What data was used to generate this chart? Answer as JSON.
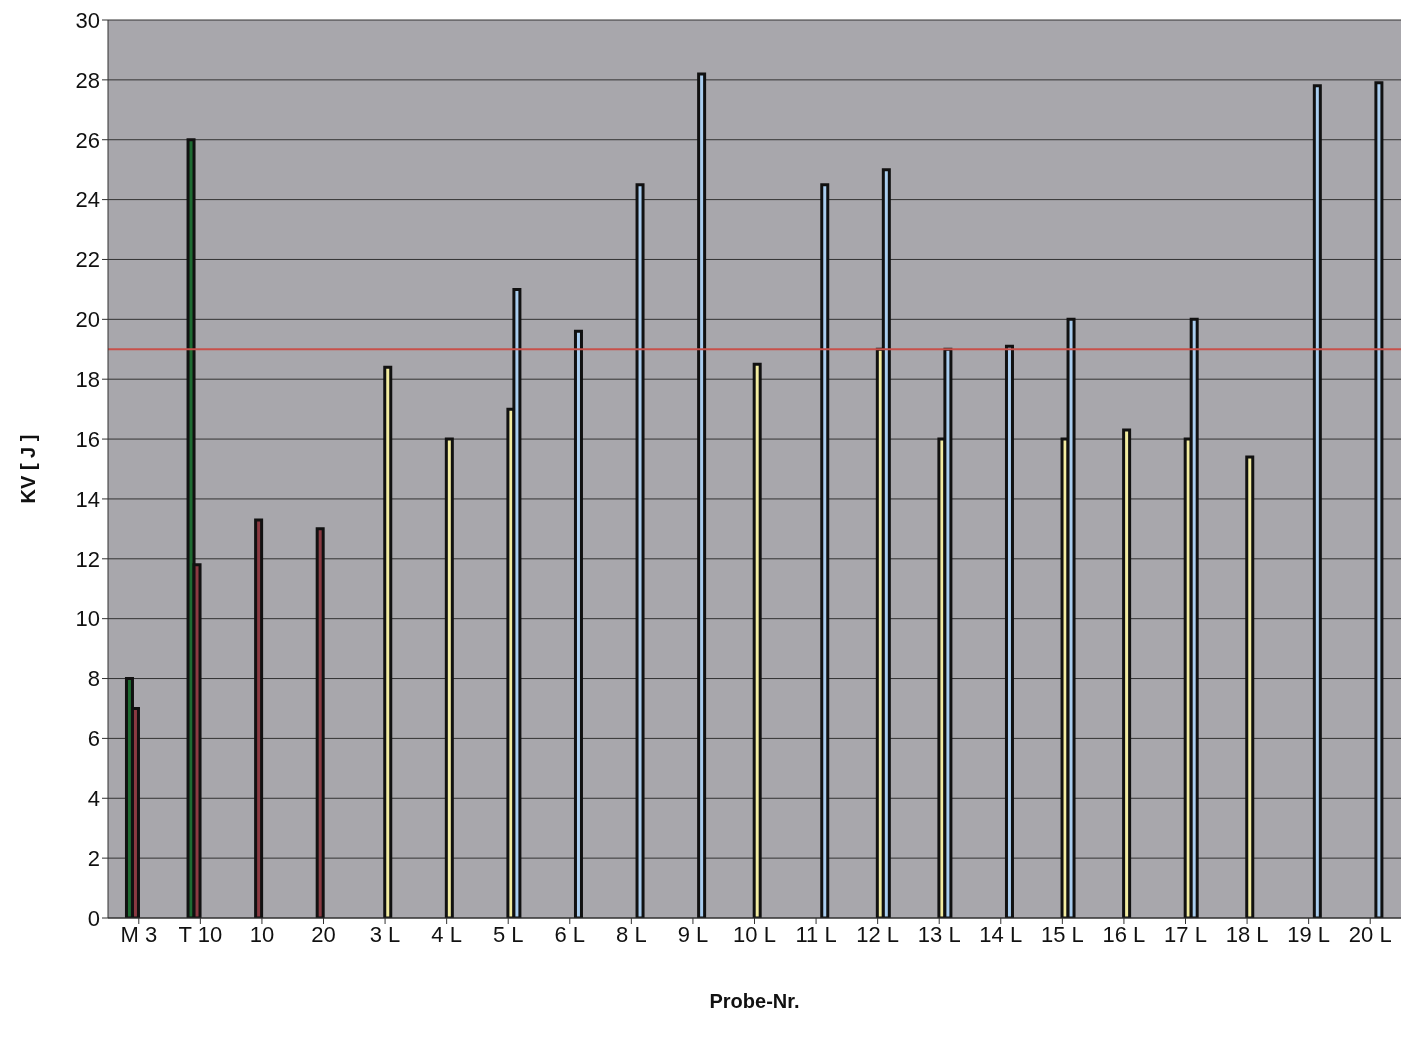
{
  "chart_data": {
    "type": "bar",
    "xlabel": "Probe-Nr.",
    "ylabel": "KV [ J ]",
    "categories": [
      "M 3",
      "T 10",
      "10",
      "20",
      "3 L",
      "4 L",
      "5 L",
      "6 L",
      "8 L",
      "9 L",
      "10 L",
      "11 L",
      "12 L",
      "13 L",
      "14 L",
      "15 L",
      "16 L",
      "17 L",
      "18 L",
      "19 L",
      "20 L"
    ],
    "series": [
      {
        "color": "#1e6b32",
        "values": [
          8,
          26,
          null,
          null,
          null,
          null,
          null,
          null,
          null,
          null,
          null,
          null,
          null,
          null,
          null,
          null,
          null,
          null,
          null,
          null,
          null
        ]
      },
      {
        "color": "#8b3a42",
        "values": [
          7,
          11.8,
          13.3,
          13,
          null,
          null,
          null,
          null,
          null,
          null,
          null,
          null,
          null,
          null,
          null,
          null,
          null,
          null,
          null,
          null,
          null
        ]
      },
      {
        "color": "#f2eca0",
        "values": [
          null,
          null,
          null,
          null,
          18.4,
          16,
          17,
          null,
          null,
          null,
          18.5,
          null,
          19,
          16,
          null,
          16,
          16.3,
          16,
          15.4,
          null,
          null
        ]
      },
      {
        "color": "#a9cdef",
        "values": [
          null,
          null,
          null,
          null,
          null,
          null,
          21,
          19.6,
          24.5,
          28.2,
          null,
          24.5,
          25,
          19,
          19.1,
          20,
          null,
          20,
          null,
          27.8,
          27.9
        ]
      }
    ],
    "ylim": [
      0,
      30
    ],
    "yticks": [
      0,
      2,
      4,
      6,
      8,
      10,
      12,
      14,
      16,
      18,
      20,
      22,
      24,
      26,
      28,
      30
    ],
    "grid": "y",
    "ref_lines": [
      {
        "axis": "y",
        "value": 19,
        "color": "#c8504a"
      }
    ]
  }
}
